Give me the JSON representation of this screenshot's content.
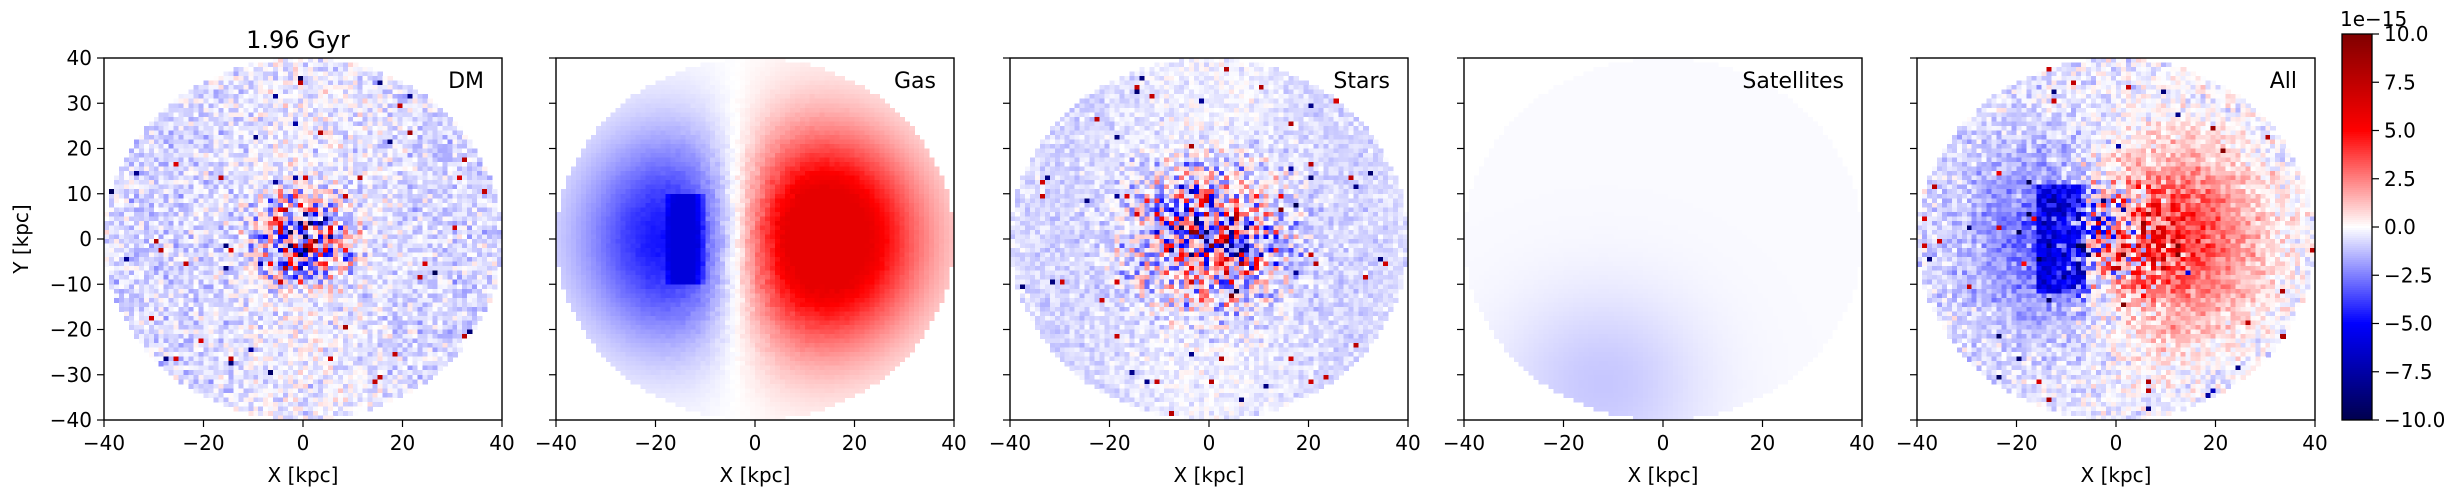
{
  "figure_title": "1.96 Gyr",
  "colorbar": {
    "offset_label": "1e−15",
    "min": -10.0,
    "max": 10.0,
    "ticks": [
      10.0,
      7.5,
      5.0,
      2.5,
      0.0,
      -2.5,
      -5.0,
      -7.5,
      -10.0
    ],
    "tick_labels": [
      "10.0",
      "7.5",
      "5.0",
      "2.5",
      "0.0",
      "−2.5",
      "−5.0",
      "−7.5",
      "−10.0"
    ],
    "colormap": "seismic",
    "colors": {
      "low": "#00004d",
      "mid_low": "#0000ff",
      "center": "#ffffff",
      "mid_high": "#ff0000",
      "high": "#800000"
    }
  },
  "chart_data": [
    {
      "type": "heatmap",
      "panel_label": "DM",
      "xlabel": "X [kpc]",
      "ylabel": "Y [kpc]",
      "xlim": [
        -40,
        40
      ],
      "ylim": [
        -40,
        40
      ],
      "xticks": [
        -40,
        -20,
        0,
        20,
        40
      ],
      "xtick_labels": [
        "−40",
        "−20",
        "0",
        "20",
        "40"
      ],
      "yticks": [
        40,
        30,
        20,
        10,
        0,
        -10,
        -20,
        -30,
        -40
      ],
      "ytick_labels": [
        "40",
        "30",
        "20",
        "10",
        "0",
        "−10",
        "−20",
        "−30",
        "−40"
      ],
      "data_extent_radius_kpc": 40,
      "center_amplitude": 10,
      "core_radius_kpc": 6,
      "noise": 2.2,
      "structure": "noisy_core"
    },
    {
      "type": "heatmap",
      "panel_label": "Gas",
      "xlabel": "X [kpc]",
      "ylabel": "",
      "xlim": [
        -40,
        40
      ],
      "ylim": [
        -40,
        40
      ],
      "xticks": [
        -40,
        -20,
        0,
        20,
        40
      ],
      "xtick_labels": [
        "−40",
        "−20",
        "0",
        "20",
        "40"
      ],
      "data_extent_radius_kpc": 40,
      "center_amplitude": 5,
      "core_radius_kpc": 16,
      "noise": 0.3,
      "structure": "dipole_ring"
    },
    {
      "type": "heatmap",
      "panel_label": "Stars",
      "xlabel": "X [kpc]",
      "ylabel": "",
      "xlim": [
        -40,
        40
      ],
      "ylim": [
        -40,
        40
      ],
      "xticks": [
        -40,
        -20,
        0,
        20,
        40
      ],
      "xtick_labels": [
        "−40",
        "−20",
        "0",
        "20",
        "40"
      ],
      "data_extent_radius_kpc": 40,
      "center_amplitude": 10,
      "core_radius_kpc": 10,
      "noise": 1.2,
      "structure": "noisy_core"
    },
    {
      "type": "heatmap",
      "panel_label": "Satellites",
      "xlabel": "X [kpc]",
      "ylabel": "",
      "xlim": [
        -40,
        40
      ],
      "ylim": [
        -40,
        40
      ],
      "xticks": [
        -40,
        -20,
        0,
        20,
        40
      ],
      "xtick_labels": [
        "−40",
        "−20",
        "0",
        "20",
        "40"
      ],
      "data_extent_radius_kpc": 40,
      "center_amplitude": -1,
      "blob_center_kpc": [
        -12,
        -32
      ],
      "blob_radius_kpc": 14,
      "structure": "faint_blob"
    },
    {
      "type": "heatmap",
      "panel_label": "All",
      "xlabel": "X [kpc]",
      "ylabel": "",
      "xlim": [
        -40,
        40
      ],
      "ylim": [
        -40,
        40
      ],
      "xticks": [
        -40,
        -20,
        0,
        20,
        40
      ],
      "xtick_labels": [
        "−40",
        "−20",
        "0",
        "20",
        "40"
      ],
      "data_extent_radius_kpc": 40,
      "center_amplitude": 10,
      "core_radius_kpc": 14,
      "noise": 2.0,
      "structure": "combined"
    }
  ]
}
